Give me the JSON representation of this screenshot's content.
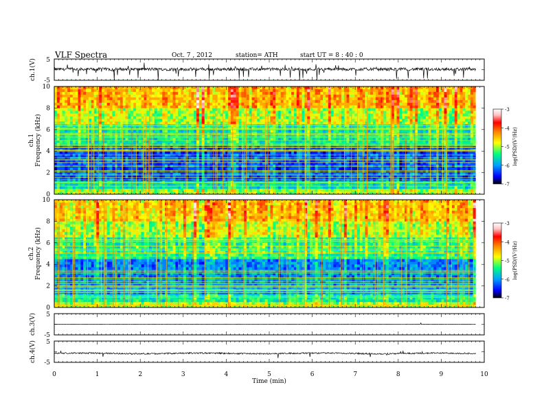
{
  "header": {
    "title": "VLF  Spectra",
    "date": "Oct. 7  , 2012",
    "station": "station= ATH",
    "start": "start  UT  =   8  : 40 : 0"
  },
  "colors": {
    "scale": [
      "#000000",
      "#0000ff",
      "#00a0ff",
      "#00ff80",
      "#ffff00",
      "#ff8000",
      "#ff0000",
      "#ffc0c0",
      "#ffffff"
    ]
  },
  "chart_data": [
    {
      "type": "line",
      "name": "ch.1 waveform",
      "ylabel": "ch.1(V)",
      "ylim": [
        -5,
        5
      ],
      "yticks": [
        "5",
        "-5"
      ],
      "x": [
        0,
        9.8
      ],
      "baseline_v": 0.2,
      "noise": "impulsive spikes toward -5 V"
    },
    {
      "type": "heatmap",
      "name": "ch.1 spectrogram",
      "ylabel": "ch.1\nFrequency  (kHz)",
      "ylim": [
        0,
        10
      ],
      "yticks": [
        "10",
        "8",
        "6",
        "4",
        "2",
        "0"
      ],
      "xlim": [
        0,
        10
      ],
      "x_extent": [
        0,
        9.8
      ],
      "colorbar": {
        "label": "log(PSD/(V²/Hz)",
        "range": [
          -7,
          -3
        ],
        "ticks": [
          "-3",
          "-4",
          "-5",
          "-6",
          "-7"
        ]
      },
      "bands": [
        {
          "kHz": [
            0,
            0.5
          ],
          "level": -5.0
        },
        {
          "kHz": [
            0.5,
            1.2
          ],
          "level": -5.6
        },
        {
          "kHz": [
            1.2,
            4.5
          ],
          "level": -6.3
        },
        {
          "kHz": [
            4.5,
            6.5
          ],
          "level": -5.5
        },
        {
          "kHz": [
            6.5,
            8.0
          ],
          "level": -4.9
        },
        {
          "kHz": [
            8.0,
            10.0
          ],
          "level": -4.4
        }
      ]
    },
    {
      "type": "heatmap",
      "name": "ch.2 spectrogram",
      "ylabel": "ch.2\nFrequency  (kHz)",
      "ylim": [
        0,
        10
      ],
      "yticks": [
        "10",
        "8",
        "6",
        "4",
        "2",
        "0"
      ],
      "xlim": [
        0,
        10
      ],
      "x_extent": [
        0,
        9.8
      ],
      "colorbar": {
        "label": "log(PSD/(V²/Hz)",
        "range": [
          -7,
          -3
        ],
        "ticks": [
          "-3",
          "-4",
          "-5",
          "-6",
          "-7"
        ]
      },
      "bands": [
        {
          "kHz": [
            0,
            0.5
          ],
          "level": -5.0
        },
        {
          "kHz": [
            0.5,
            1.2
          ],
          "level": -5.5
        },
        {
          "kHz": [
            1.2,
            4.5
          ],
          "level": -6.1
        },
        {
          "kHz": [
            4.5,
            6.5
          ],
          "level": -5.4
        },
        {
          "kHz": [
            6.5,
            8.0
          ],
          "level": -4.9
        },
        {
          "kHz": [
            8.0,
            10.0
          ],
          "level": -4.5
        }
      ]
    },
    {
      "type": "line",
      "name": "ch.3 waveform",
      "ylabel": "ch.3(V)",
      "ylim": [
        -5,
        5
      ],
      "yticks": [
        "5",
        "-5"
      ],
      "x": [
        0,
        9.8
      ],
      "baseline_v": 0.0,
      "noise": "near flat"
    },
    {
      "type": "line",
      "name": "ch.4 waveform",
      "ylabel": "ch.4(V)",
      "ylim": [
        -5,
        5
      ],
      "yticks": [
        "5",
        "-5"
      ],
      "x": [
        0,
        9.8
      ],
      "baseline_v": -0.8,
      "noise": "small wiggles with a few spikes"
    }
  ],
  "xaxis": {
    "label": "Time  (min)",
    "ticks": [
      "0",
      "1",
      "2",
      "3",
      "4",
      "5",
      "6",
      "7",
      "8",
      "9",
      "10"
    ],
    "range": [
      0,
      10
    ]
  }
}
